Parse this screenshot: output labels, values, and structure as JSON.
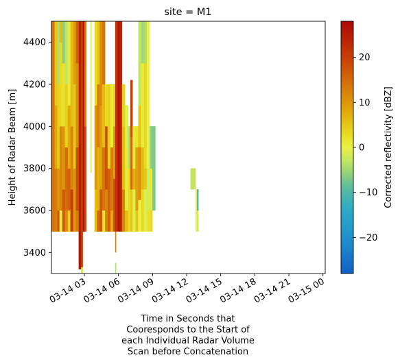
{
  "chart_data": {
    "type": "heatmap",
    "title": "site = M1",
    "xlabel_lines": [
      "Time in Seconds that",
      "Cooresponds to the Start of",
      "each Individual Radar Volume",
      "Scan before Concatenation"
    ],
    "ylabel": "Height of Radar Beam [m]",
    "colorbar_label": "Corrected reflectivity [dBZ]",
    "colormap": "HomeyerRainbow",
    "clim": [
      -28,
      28
    ],
    "colorbar_ticks": [
      -20,
      -10,
      0,
      10,
      20
    ],
    "x_unit": "hours since 2024-03-14 00:00 (axis shows dates)",
    "xlim": [
      0.1,
      24.2
    ],
    "ylim": [
      3300,
      4500
    ],
    "x_ticks": [
      {
        "value": 3,
        "label": "03-14 03"
      },
      {
        "value": 6,
        "label": "03-14 06"
      },
      {
        "value": 9,
        "label": "03-14 09"
      },
      {
        "value": 12,
        "label": "03-14 12"
      },
      {
        "value": 15,
        "label": "03-14 15"
      },
      {
        "value": 18,
        "label": "03-14 18"
      },
      {
        "value": 21,
        "label": "03-14 21"
      },
      {
        "value": 24,
        "label": "03-15 00"
      }
    ],
    "y_ticks": [
      3400,
      3600,
      3800,
      4000,
      4200,
      4400
    ],
    "columns": [
      {
        "t0": 0.1,
        "t1": 0.38,
        "bands": [
          [
            3500,
            4500,
            14
          ]
        ]
      },
      {
        "t0": 0.38,
        "t1": 0.62,
        "bands": [
          [
            3500,
            3800,
            13
          ],
          [
            3800,
            4100,
            8
          ],
          [
            4100,
            4500,
            5
          ]
        ]
      },
      {
        "t0": 0.62,
        "t1": 0.82,
        "bands": [
          [
            3500,
            3600,
            17
          ],
          [
            3600,
            3800,
            10
          ],
          [
            3800,
            4200,
            4
          ],
          [
            4200,
            4500,
            -4
          ]
        ]
      },
      {
        "t0": 0.82,
        "t1": 1.05,
        "bands": [
          [
            3500,
            3600,
            0
          ],
          [
            3600,
            4000,
            12
          ],
          [
            4000,
            4400,
            3
          ],
          [
            4400,
            4500,
            6
          ]
        ]
      },
      {
        "t0": 1.05,
        "t1": 1.3,
        "bands": [
          [
            3500,
            3700,
            17
          ],
          [
            3700,
            4000,
            10
          ],
          [
            4000,
            4300,
            2
          ],
          [
            4300,
            4500,
            -6
          ]
        ]
      },
      {
        "t0": 1.3,
        "t1": 1.55,
        "bands": [
          [
            3500,
            3600,
            11
          ],
          [
            3600,
            3900,
            15
          ],
          [
            3900,
            4200,
            4
          ],
          [
            4200,
            4500,
            -3
          ]
        ]
      },
      {
        "t0": 1.55,
        "t1": 1.78,
        "bands": [
          [
            3500,
            3600,
            4
          ],
          [
            3600,
            3800,
            16
          ],
          [
            3800,
            4100,
            8
          ],
          [
            4100,
            4500,
            1
          ]
        ]
      },
      {
        "t0": 1.78,
        "t1": 2.02,
        "bands": [
          [
            3500,
            3700,
            20
          ],
          [
            3700,
            4000,
            12
          ],
          [
            4000,
            4500,
            6
          ]
        ]
      },
      {
        "t0": 2.02,
        "t1": 2.25,
        "bands": [
          [
            3500,
            3800,
            10
          ],
          [
            3800,
            4200,
            5
          ],
          [
            4200,
            4500,
            9
          ]
        ]
      },
      {
        "t0": 2.25,
        "t1": 2.5,
        "bands": [
          [
            3500,
            3600,
            13
          ],
          [
            3600,
            3900,
            18
          ],
          [
            3900,
            4300,
            11
          ],
          [
            4300,
            4500,
            16
          ]
        ]
      },
      {
        "t0": 2.5,
        "t1": 2.72,
        "bands": [
          [
            3320,
            3500,
            26
          ],
          [
            3500,
            4500,
            24
          ]
        ]
      },
      {
        "t0": 2.72,
        "t1": 2.86,
        "bands": [
          [
            3280,
            3330,
            -2
          ],
          [
            3330,
            3500,
            20
          ],
          [
            3500,
            4500,
            20
          ]
        ]
      },
      {
        "t0": 2.86,
        "t1": 3.02,
        "bands": [
          [
            3500,
            4500,
            26
          ]
        ]
      },
      {
        "t0": 3.02,
        "t1": 3.18,
        "bands": [
          [
            3500,
            4000,
            18
          ],
          [
            4000,
            4500,
            12
          ]
        ]
      },
      {
        "t0": 3.55,
        "t1": 3.63,
        "bands": [
          [
            3780,
            4500,
            -2
          ]
        ]
      },
      {
        "t0": 3.9,
        "t1": 4.12,
        "bands": [
          [
            3500,
            3700,
            6
          ],
          [
            3700,
            4100,
            10
          ],
          [
            4100,
            4500,
            3
          ]
        ]
      },
      {
        "t0": 4.12,
        "t1": 4.35,
        "bands": [
          [
            3500,
            3600,
            15
          ],
          [
            3600,
            3900,
            7
          ],
          [
            3900,
            4200,
            13
          ],
          [
            4200,
            4500,
            5
          ]
        ]
      },
      {
        "t0": 4.35,
        "t1": 4.58,
        "bands": [
          [
            3500,
            3700,
            17
          ],
          [
            3700,
            4100,
            9
          ],
          [
            4100,
            4500,
            11
          ]
        ]
      },
      {
        "t0": 4.58,
        "t1": 4.82,
        "bands": [
          [
            3500,
            3600,
            2
          ],
          [
            3600,
            3900,
            14
          ],
          [
            3900,
            4200,
            6
          ],
          [
            4200,
            4500,
            14
          ]
        ]
      },
      {
        "t0": 4.82,
        "t1": 5.05,
        "bands": [
          [
            3500,
            3700,
            12
          ],
          [
            3700,
            4000,
            18
          ],
          [
            4000,
            4200,
            3
          ]
        ]
      },
      {
        "t0": 5.05,
        "t1": 5.3,
        "bands": [
          [
            3500,
            3800,
            16
          ],
          [
            3800,
            4200,
            4
          ]
        ]
      },
      {
        "t0": 5.3,
        "t1": 5.55,
        "bands": [
          [
            3500,
            3600,
            8
          ],
          [
            3600,
            3900,
            13
          ],
          [
            3900,
            4200,
            1
          ]
        ]
      },
      {
        "t0": 5.55,
        "t1": 5.72,
        "bands": [
          [
            3500,
            3750,
            18
          ],
          [
            3750,
            4000,
            9
          ],
          [
            4000,
            4200,
            3
          ]
        ]
      },
      {
        "t0": 5.72,
        "t1": 5.8,
        "bands": [
          [
            3290,
            3350,
            -4
          ],
          [
            3400,
            3500,
            13
          ],
          [
            3500,
            4500,
            23
          ]
        ]
      },
      {
        "t0": 5.8,
        "t1": 5.95,
        "bands": [
          [
            3500,
            4500,
            22
          ]
        ]
      },
      {
        "t0": 5.95,
        "t1": 6.12,
        "bands": [
          [
            3500,
            4500,
            26
          ]
        ]
      },
      {
        "t0": 6.12,
        "t1": 6.32,
        "bands": [
          [
            3500,
            4500,
            24
          ]
        ]
      },
      {
        "t0": 6.32,
        "t1": 6.58,
        "bands": [
          [
            3500,
            3700,
            12
          ],
          [
            3700,
            4000,
            6
          ],
          [
            4000,
            4200,
            4
          ]
        ]
      },
      {
        "t0": 6.58,
        "t1": 6.85,
        "bands": [
          [
            3500,
            3600,
            6
          ],
          [
            3600,
            3900,
            1
          ],
          [
            3900,
            4100,
            -1
          ]
        ]
      },
      {
        "t0": 6.85,
        "t1": 7.05,
        "bands": [
          [
            3500,
            3800,
            3
          ],
          [
            3800,
            4000,
            -4
          ]
        ]
      },
      {
        "t0": 7.05,
        "t1": 7.25,
        "bands": [
          [
            3500,
            3700,
            5
          ],
          [
            3700,
            3950,
            15
          ],
          [
            3950,
            4000,
            18
          ],
          [
            4000,
            4220,
            20
          ]
        ]
      },
      {
        "t0": 7.25,
        "t1": 7.5,
        "bands": [
          [
            3500,
            3700,
            -1
          ],
          [
            3700,
            3800,
            7
          ],
          [
            3800,
            4000,
            1
          ]
        ]
      },
      {
        "t0": 7.5,
        "t1": 7.75,
        "bands": [
          [
            3500,
            3600,
            5
          ],
          [
            3600,
            3900,
            9
          ],
          [
            3900,
            4000,
            2
          ]
        ]
      },
      {
        "t0": 7.75,
        "t1": 8.0,
        "bands": [
          [
            3500,
            3650,
            0
          ],
          [
            3650,
            3900,
            11
          ],
          [
            3900,
            4100,
            5
          ],
          [
            4100,
            4500,
            -3
          ]
        ]
      },
      {
        "t0": 8.0,
        "t1": 8.25,
        "bands": [
          [
            3500,
            3700,
            3
          ],
          [
            3700,
            3900,
            6
          ],
          [
            3900,
            4300,
            1
          ],
          [
            4300,
            4500,
            -5
          ]
        ]
      },
      {
        "t0": 8.25,
        "t1": 8.5,
        "bands": [
          [
            3500,
            3700,
            -1
          ],
          [
            3700,
            3800,
            5
          ],
          [
            3800,
            4300,
            3
          ],
          [
            4300,
            4500,
            -4
          ]
        ]
      },
      {
        "t0": 8.5,
        "t1": 8.75,
        "bands": [
          [
            3500,
            3600,
            2
          ],
          [
            3600,
            3800,
            -2
          ],
          [
            3800,
            4500,
            0
          ]
        ]
      },
      {
        "t0": 8.75,
        "t1": 9.0,
        "bands": [
          [
            3500,
            3600,
            3
          ],
          [
            3600,
            3800,
            1
          ],
          [
            3800,
            4000,
            -6
          ]
        ]
      },
      {
        "t0": 9.0,
        "t1": 9.25,
        "bands": [
          [
            3600,
            4000,
            -7
          ]
        ]
      },
      {
        "t0": 12.35,
        "t1": 12.8,
        "bands": [
          [
            3700,
            3800,
            -3
          ]
        ]
      },
      {
        "t0": 12.8,
        "t1": 12.92,
        "bands": [
          [
            3500,
            3700,
            -1
          ]
        ]
      },
      {
        "t0": 12.92,
        "t1": 13.05,
        "bands": [
          [
            3500,
            3600,
            -2
          ],
          [
            3600,
            3700,
            -10
          ]
        ]
      }
    ]
  }
}
